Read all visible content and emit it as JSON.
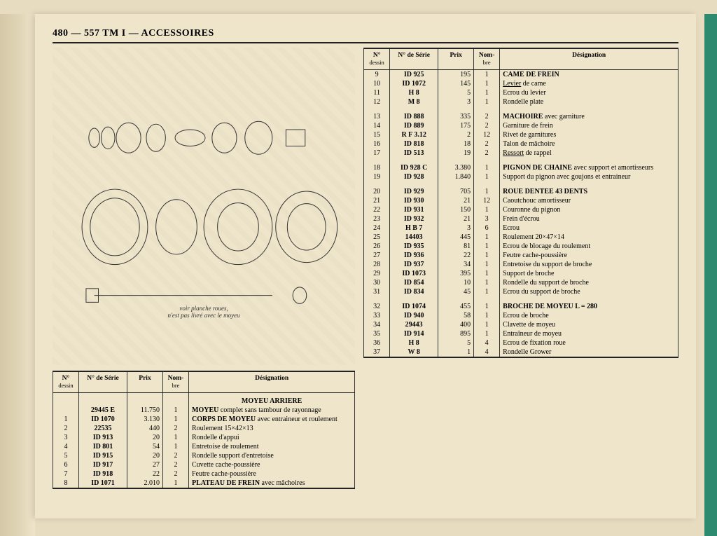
{
  "header": {
    "page_no": "480",
    "catalog": "557 TM I",
    "section": "ACCESSOIRES"
  },
  "columns": {
    "n_dessin": "N°",
    "n_dessin_sub": "dessin",
    "n_serie": "N° de Série",
    "prix": "Prix",
    "nombre": "Nom-",
    "nombre_sub": "bre",
    "designation": "Désignation"
  },
  "diagram_caption_line1": "voir planche roues,",
  "diagram_caption_line2": "n'est pas livré avec le moyeu",
  "left_table": {
    "section": "MOYEU ARRIERE",
    "rows": [
      {
        "n": "",
        "serie": "29445 E",
        "prix": "11.750",
        "nb": "1",
        "des": "<b>MOYEU</b> complet sans tambour de rayonnage"
      },
      {
        "n": "1",
        "serie": "ID 1070",
        "prix": "3.130",
        "nb": "1",
        "des": "<b>CORPS DE MOYEU</b> avec entraineur et roulement"
      },
      {
        "n": "2",
        "serie": "22535",
        "prix": "440",
        "nb": "2",
        "des": "Roulement 15×42×13"
      },
      {
        "n": "3",
        "serie": "ID 913",
        "prix": "20",
        "nb": "1",
        "des": "Rondelle d'appui"
      },
      {
        "n": "4",
        "serie": "ID 801",
        "prix": "54",
        "nb": "1",
        "des": "Entretoise de roulement"
      },
      {
        "n": "5",
        "serie": "ID 915",
        "prix": "20",
        "nb": "2",
        "des": "Rondelle support d'entretoise"
      },
      {
        "n": "6",
        "serie": "ID 917",
        "prix": "27",
        "nb": "2",
        "des": "Cuvette cache-poussière"
      },
      {
        "n": "7",
        "serie": "ID 918",
        "prix": "22",
        "nb": "2",
        "des": "Feutre cache-poussière"
      },
      {
        "n": "8",
        "serie": "ID 1071",
        "prix": "2.010",
        "nb": "1",
        "des": "<b>PLATEAU DE FREIN</b> avec mâchoires"
      }
    ]
  },
  "right_table": {
    "rows": [
      {
        "n": "9",
        "serie": "ID 925",
        "prix": "195",
        "nb": "1",
        "des": "<b>CAME DE FREIN</b>"
      },
      {
        "n": "10",
        "serie": "ID 1072",
        "prix": "145",
        "nb": "1",
        "des": "<span class='u'>Levier</span> de came"
      },
      {
        "n": "11",
        "serie": "H 8",
        "prix": "5",
        "nb": "1",
        "des": "Ecrou du levier"
      },
      {
        "n": "12",
        "serie": "M 8",
        "prix": "3",
        "nb": "1",
        "des": "Rondelle plate"
      },
      {
        "sp": true
      },
      {
        "n": "13",
        "serie": "ID 888",
        "prix": "335",
        "nb": "2",
        "des": "<b>MACHOIRE</b> avec garniture"
      },
      {
        "n": "14",
        "serie": "ID 889",
        "prix": "175",
        "nb": "2",
        "des": "Garniture de frein"
      },
      {
        "n": "15",
        "serie": "R F 3.12",
        "prix": "2",
        "nb": "12",
        "des": "Rivet de garnitures"
      },
      {
        "n": "16",
        "serie": "ID 818",
        "prix": "18",
        "nb": "2",
        "des": "Talon de mâchoire"
      },
      {
        "n": "17",
        "serie": "ID 513",
        "prix": "19",
        "nb": "2",
        "des": "<span class='u'>Ressort</span> de rappel"
      },
      {
        "sp": true
      },
      {
        "n": "18",
        "serie": "ID 928 C",
        "prix": "3.380",
        "nb": "1",
        "des": "<b>PIGNON DE CHAINE</b> avec support et amortisseurs"
      },
      {
        "n": "19",
        "serie": "ID 928",
        "prix": "1.840",
        "nb": "1",
        "des": "Support du pignon avec goujons et entraineur"
      },
      {
        "sp": true
      },
      {
        "n": "20",
        "serie": "ID 929",
        "prix": "705",
        "nb": "1",
        "des": "<b>ROUE DENTEE 43 DENTS</b>"
      },
      {
        "n": "21",
        "serie": "ID 930",
        "prix": "21",
        "nb": "12",
        "des": "Caoutchouc amortisseur"
      },
      {
        "n": "22",
        "serie": "ID 931",
        "prix": "150",
        "nb": "1",
        "des": "Couronne du pignon"
      },
      {
        "n": "23",
        "serie": "ID 932",
        "prix": "21",
        "nb": "3",
        "des": "Frein d'écrou"
      },
      {
        "n": "24",
        "serie": "H B 7",
        "prix": "3",
        "nb": "6",
        "des": "Ecrou"
      },
      {
        "n": "25",
        "serie": "14403",
        "prix": "445",
        "nb": "1",
        "des": "Roulement 20×47×14"
      },
      {
        "n": "26",
        "serie": "ID 935",
        "prix": "81",
        "nb": "1",
        "des": "Ecrou de blocage du roulement"
      },
      {
        "n": "27",
        "serie": "ID 936",
        "prix": "22",
        "nb": "1",
        "des": "Feutre cache-poussière"
      },
      {
        "n": "28",
        "serie": "ID 937",
        "prix": "34",
        "nb": "1",
        "des": "Entretoise du support de broche"
      },
      {
        "n": "29",
        "serie": "ID 1073",
        "prix": "395",
        "nb": "1",
        "des": "Support de broche"
      },
      {
        "n": "30",
        "serie": "ID 854",
        "prix": "10",
        "nb": "1",
        "des": "Rondelle du support de broche"
      },
      {
        "n": "31",
        "serie": "ID 834",
        "prix": "45",
        "nb": "1",
        "des": "Ecrou du support de broche"
      },
      {
        "sp": true
      },
      {
        "n": "32",
        "serie": "ID 1074",
        "prix": "455",
        "nb": "1",
        "des": "<b>BROCHE DE MOYEU L = 280</b>"
      },
      {
        "n": "33",
        "serie": "ID 940",
        "prix": "58",
        "nb": "1",
        "des": "Ecrou de broche"
      },
      {
        "n": "34",
        "serie": "29443",
        "prix": "400",
        "nb": "1",
        "des": "Clavette de moyeu"
      },
      {
        "n": "35",
        "serie": "ID 914",
        "prix": "895",
        "nb": "1",
        "des": "Entraîneur de moyeu"
      },
      {
        "n": "36",
        "serie": "H 8",
        "prix": "5",
        "nb": "4",
        "des": "Ecrou de fixation roue"
      },
      {
        "n": "37",
        "serie": "W 8",
        "prix": "1",
        "nb": "4",
        "des": "Rondelle Grower"
      }
    ]
  }
}
